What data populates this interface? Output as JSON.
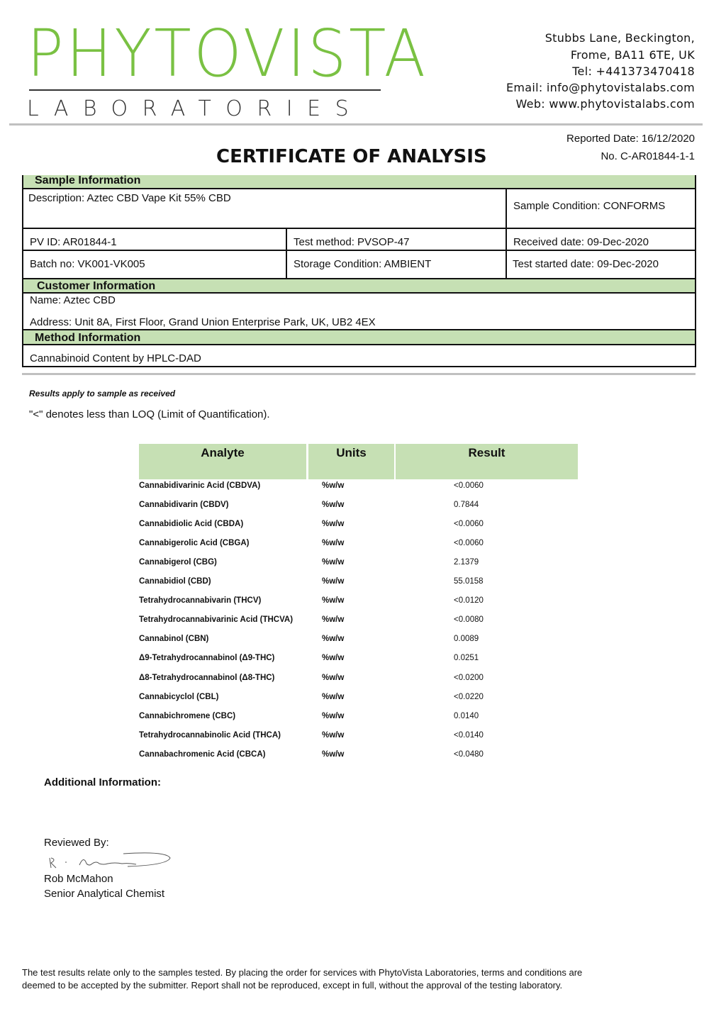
{
  "logo": {
    "name": "PHYTOVISTA",
    "subtitle": "LABORATORIES",
    "brand_color": "#7ac143"
  },
  "address": [
    "Stubbs Lane, Beckington,",
    "Frome, BA11 6TE, UK",
    "Tel: +441373470418",
    "Email: info@phytovistalabs.com",
    "Web: www.phytovistalabs.com"
  ],
  "title": "CERTIFICATE OF ANALYSIS",
  "reported_date": "Reported Date: 16/12/2020",
  "report_no": "No. C-AR01844-1-1",
  "sample": {
    "header": "Sample Information",
    "description": "Description: Aztec CBD Vape Kit 55% CBD",
    "condition": "Sample Condition: CONFORMS",
    "pv_id": "PV ID: AR01844-1",
    "test_method": "Test method: PVSOP-47",
    "received": "Received date: 09-Dec-2020",
    "batch": "Batch no: VK001-VK005",
    "storage": "Storage Condition: AMBIENT",
    "test_started": "Test started date: 09-Dec-2020"
  },
  "customer": {
    "header": "Customer Information",
    "name": "Name:    Aztec CBD",
    "address": "Address:   Unit 8A, First Floor, Grand Union Enterprise Park, UK, UB2 4EX"
  },
  "method": {
    "header": "Method Information",
    "value": "Cannabinoid Content by HPLC-DAD"
  },
  "notes": {
    "applies": "Results apply to sample as received",
    "loq": "\"<\" denotes less than LOQ (Limit of Quantification)."
  },
  "results": {
    "headers": [
      "Analyte",
      "Units",
      "Result"
    ],
    "rows": [
      [
        "Cannabidivarinic Acid (CBDVA)",
        "%w/w",
        "<0.0060"
      ],
      [
        "Cannabidivarin (CBDV)",
        "%w/w",
        "0.7844"
      ],
      [
        "Cannabidiolic Acid (CBDA)",
        "%w/w",
        "<0.0060"
      ],
      [
        "Cannabigerolic Acid (CBGA)",
        "%w/w",
        "<0.0060"
      ],
      [
        "Cannabigerol (CBG)",
        "%w/w",
        "2.1379"
      ],
      [
        "Cannabidiol (CBD)",
        "%w/w",
        "55.0158"
      ],
      [
        "Tetrahydrocannabivarin (THCV)",
        "%w/w",
        "<0.0120"
      ],
      [
        "Tetrahydrocannabivarinic Acid (THCVA)",
        "%w/w",
        "<0.0080"
      ],
      [
        "Cannabinol (CBN)",
        "%w/w",
        "0.0089"
      ],
      [
        "Δ9-Tetrahydrocannabinol (Δ9-THC)",
        "%w/w",
        "0.0251"
      ],
      [
        "Δ8-Tetrahydrocannabinol (Δ8-THC)",
        "%w/w",
        "<0.0200"
      ],
      [
        "Cannabicyclol (CBL)",
        "%w/w",
        "<0.0220"
      ],
      [
        "Cannabichromene (CBC)",
        "%w/w",
        "0.0140"
      ],
      [
        "Tetrahydrocannabinolic Acid (THCA)",
        "%w/w",
        "<0.0140"
      ],
      [
        "Cannabachromenic Acid (CBCA)",
        "%w/w",
        "<0.0480"
      ]
    ]
  },
  "additional_info": "Additional Information:",
  "reviewed_by": "Reviewed By:",
  "reviewer_name": "Rob McMahon",
  "reviewer_title": "Senior Analytical Chemist",
  "footer": [
    "The test results relate only to the samples tested.  By placing the order for services with PhytoVista Laboratories, terms and conditions are",
    "deemed to be accepted by the submitter. Report shall not be reproduced, except in full, without the approval of the testing laboratory."
  ]
}
